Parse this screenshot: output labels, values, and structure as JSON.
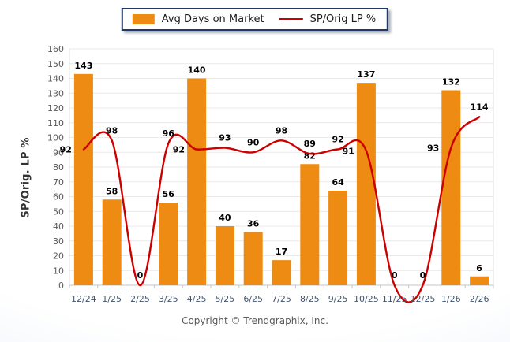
{
  "legend": {
    "items": [
      {
        "label": "Avg Days on Market",
        "swatch": "bar",
        "color": "#EE8B13"
      },
      {
        "label": "SP/Orig LP %",
        "swatch": "line",
        "color": "#CC0000"
      }
    ]
  },
  "chart_data": {
    "type": "bar",
    "categories": [
      "12/24",
      "1/25",
      "2/25",
      "3/25",
      "4/25",
      "5/25",
      "6/25",
      "7/25",
      "8/25",
      "9/25",
      "10/25",
      "11/25",
      "12/25",
      "1/26",
      "2/26"
    ],
    "series": [
      {
        "name": "Avg Days on Market",
        "type": "bar",
        "color": "#EE8B13",
        "values": [
          143,
          58,
          0,
          56,
          140,
          40,
          36,
          17,
          82,
          64,
          137,
          0,
          0,
          132,
          6
        ]
      },
      {
        "name": "SP/Orig LP %",
        "type": "line",
        "color": "#CC0000",
        "smooth": true,
        "values": [
          92,
          98,
          0,
          96,
          92,
          93,
          90,
          98,
          89,
          92,
          91,
          0,
          0,
          93,
          114
        ]
      }
    ],
    "title": "",
    "xlabel": "",
    "ylabel": "SP/Orig. LP %",
    "ylim": [
      0,
      160
    ],
    "ytick_step": 10,
    "grid": true,
    "legend_position": "top-center",
    "colors": {
      "gridline": "#E9E9E9",
      "axis_line": "#C6C6C6",
      "y_tick_label": "#595959",
      "x_tick_label": "#44546A",
      "data_label": "#000000"
    }
  },
  "footer": {
    "copyright": "Copyright © Trendgraphix, Inc."
  }
}
